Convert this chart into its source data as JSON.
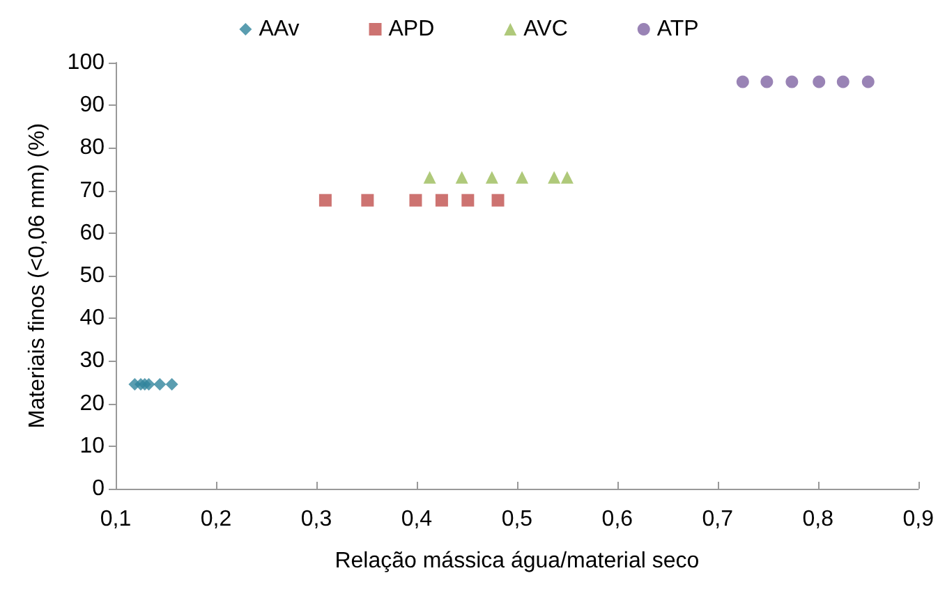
{
  "chart_data": {
    "type": "scatter",
    "xlabel": "Relação mássica água/material seco",
    "ylabel": "Materiais finos (<0,06 mm) (%)",
    "xlim": [
      0.1,
      0.9
    ],
    "xticks": [
      {
        "value": 0.1,
        "label": "0,1"
      },
      {
        "value": 0.2,
        "label": "0,2"
      },
      {
        "value": 0.3,
        "label": "0,3"
      },
      {
        "value": 0.4,
        "label": "0,4"
      },
      {
        "value": 0.5,
        "label": "0,5"
      },
      {
        "value": 0.6,
        "label": "0,6"
      },
      {
        "value": 0.7,
        "label": "0,7"
      },
      {
        "value": 0.8,
        "label": "0,8"
      },
      {
        "value": 0.9,
        "label": "0,9"
      }
    ],
    "ylim": [
      0,
      100
    ],
    "yticks": [
      0,
      10,
      20,
      30,
      40,
      50,
      60,
      70,
      80,
      90,
      100
    ],
    "grid": false,
    "legend": "top",
    "series": [
      {
        "name": "AAv",
        "color": "#31859c",
        "marker": "diamond",
        "x": [
          0.119,
          0.125,
          0.129,
          0.133,
          0.144,
          0.156
        ],
        "values": [
          24.5,
          24.5,
          24.5,
          24.5,
          24.5,
          24.5
        ]
      },
      {
        "name": "APD",
        "color": "#c0504d",
        "marker": "square",
        "x": [
          0.309,
          0.351,
          0.399,
          0.425,
          0.451,
          0.481
        ],
        "values": [
          67.7,
          67.7,
          67.7,
          67.7,
          67.7,
          67.7
        ]
      },
      {
        "name": "AVC",
        "color": "#9bbb59",
        "marker": "triangle",
        "x": [
          0.413,
          0.445,
          0.475,
          0.505,
          0.537,
          0.55
        ],
        "values": [
          73.1,
          73.1,
          73.1,
          73.1,
          73.1,
          73.1
        ]
      },
      {
        "name": "ATP",
        "color": "#8064a2",
        "marker": "circle",
        "x": [
          0.725,
          0.749,
          0.774,
          0.801,
          0.825,
          0.85
        ],
        "values": [
          95.5,
          95.5,
          95.5,
          95.5,
          95.5,
          95.5
        ]
      }
    ]
  }
}
